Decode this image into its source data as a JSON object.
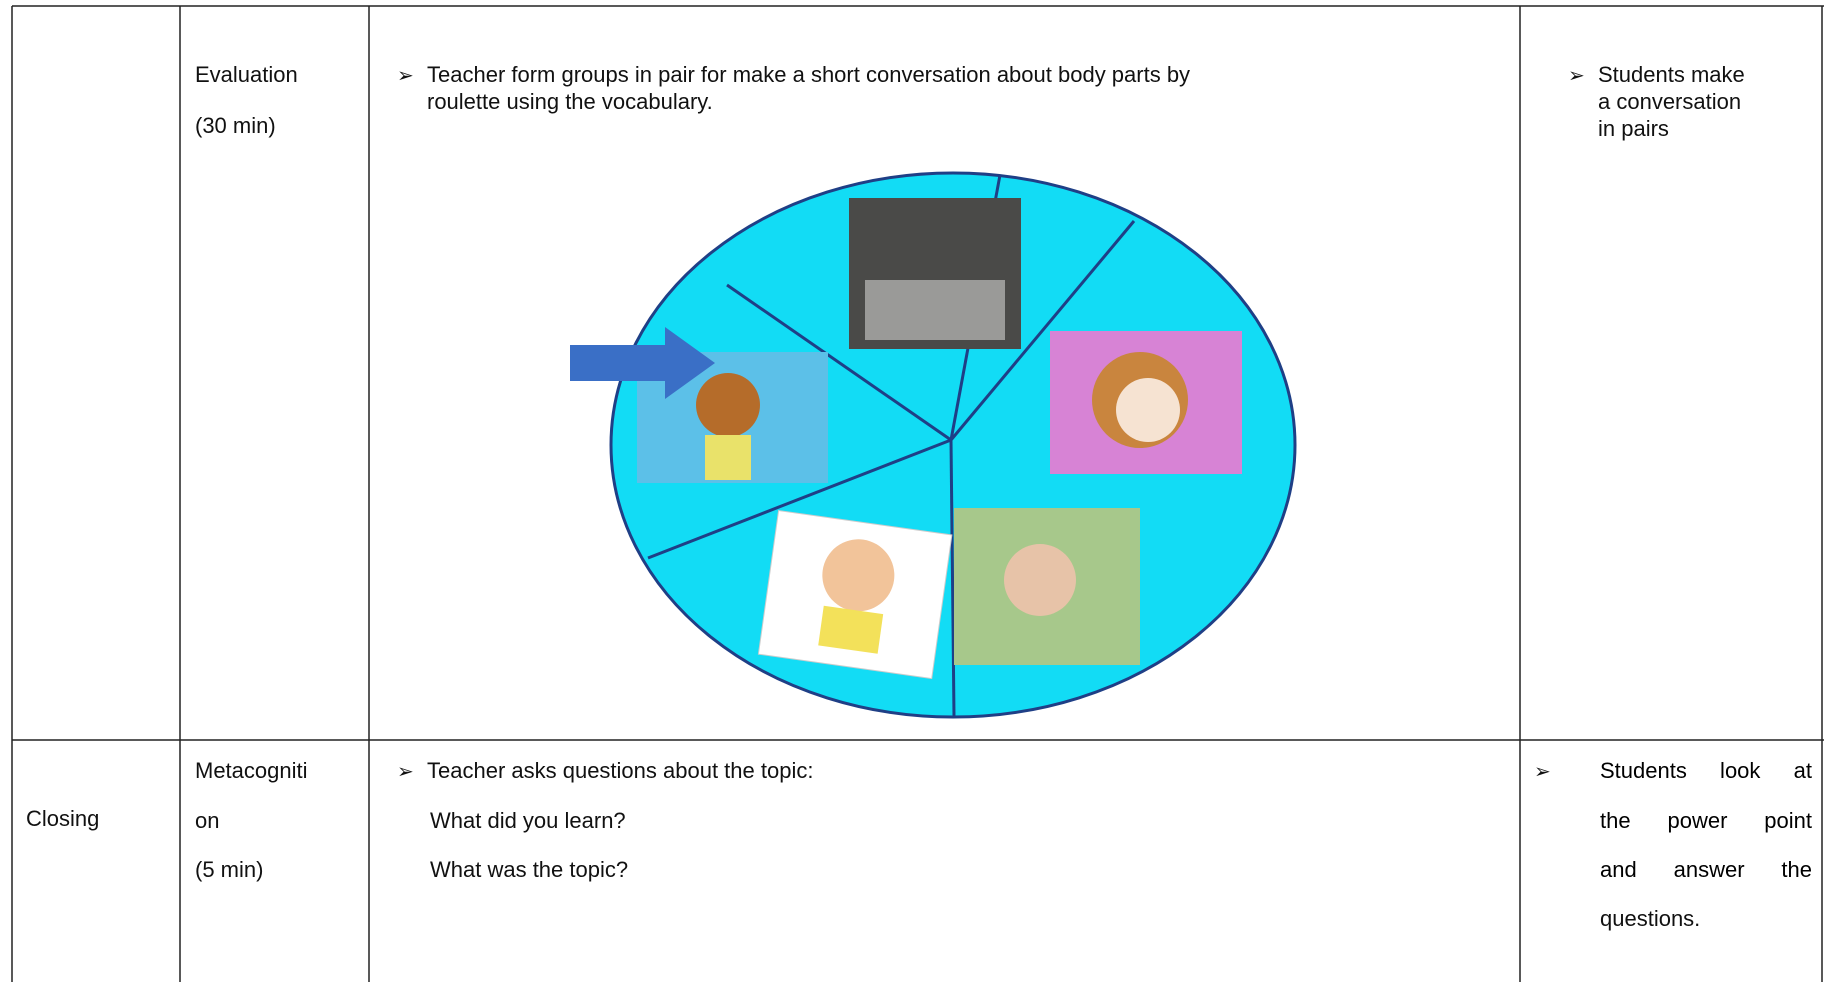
{
  "rows": [
    {
      "stage": "",
      "activity": [
        "Evaluation",
        "(30 min)"
      ],
      "teacher": [
        "Teacher form groups in pair for make a short conversation about body parts by",
        "roulette using the vocabulary."
      ],
      "students": [
        "Students make",
        "a conversation",
        "in pairs"
      ]
    },
    {
      "stage": "Closing",
      "activity": [
        "Metacogniti",
        "on",
        "(5 min)"
      ],
      "teacher": [
        "Teacher asks questions about the topic:",
        "What did you learn?",
        "What was the topic?"
      ],
      "students": [
        "Students look at",
        "the power point",
        "and answer the",
        "questions."
      ]
    }
  ]
}
